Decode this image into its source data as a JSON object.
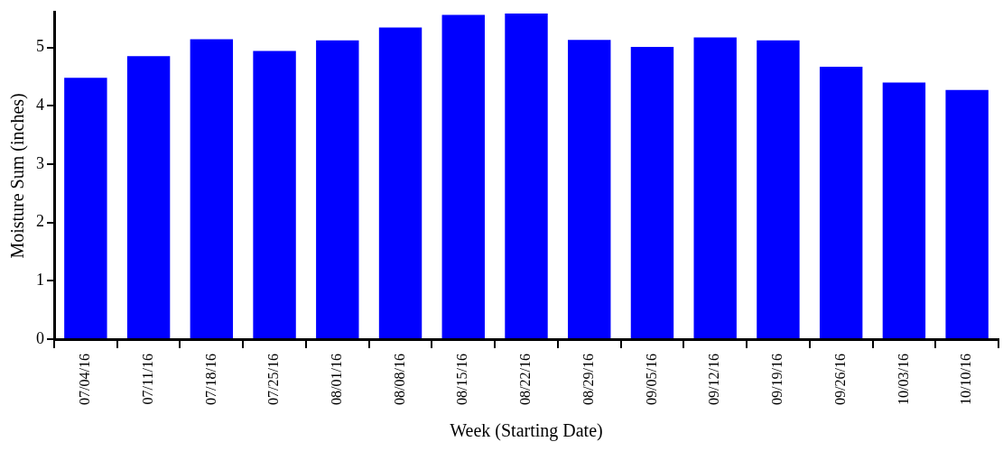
{
  "chart_data": {
    "type": "bar",
    "xlabel": "Week (Starting Date)",
    "ylabel": "Moisture Sum (inches)",
    "categories": [
      "07/04/16",
      "07/11/16",
      "07/18/16",
      "07/25/16",
      "08/01/16",
      "08/08/16",
      "08/15/16",
      "08/22/16",
      "08/29/16",
      "09/05/16",
      "09/12/16",
      "09/19/16",
      "09/26/16",
      "10/03/16",
      "10/10/16"
    ],
    "values": [
      4.48,
      4.85,
      5.14,
      4.94,
      5.12,
      5.34,
      5.56,
      5.58,
      5.13,
      5.01,
      5.17,
      5.12,
      4.67,
      4.4,
      4.27
    ],
    "color": "#0000ff",
    "ylim": [
      0,
      5.6
    ],
    "yticks": [
      0,
      1,
      2,
      3,
      4,
      5
    ],
    "grid": false,
    "legend": false
  }
}
